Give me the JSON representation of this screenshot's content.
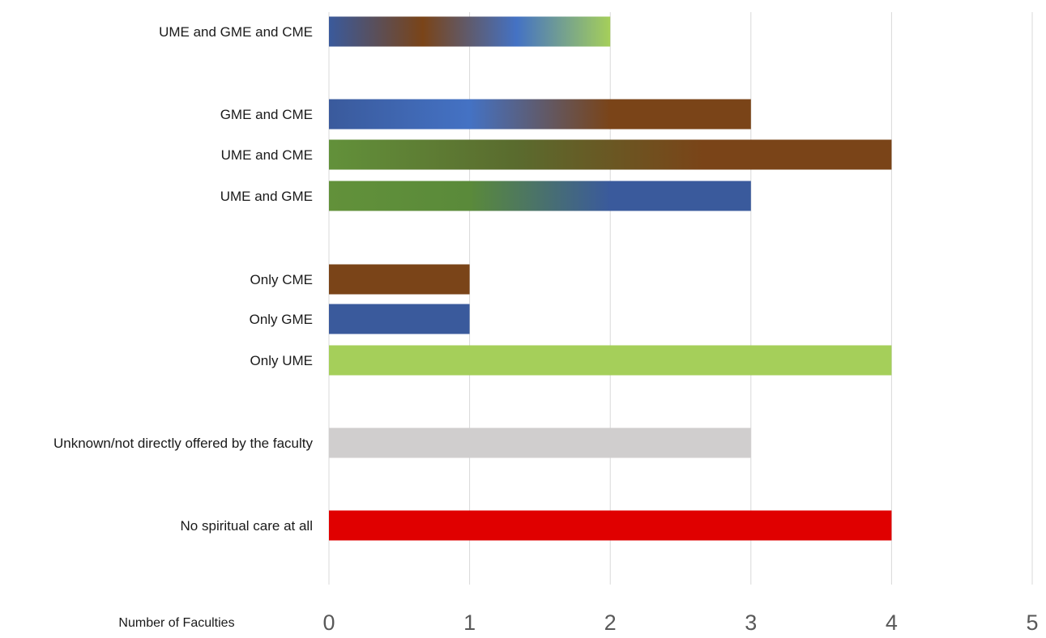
{
  "chart_data": {
    "type": "bar",
    "orientation": "horizontal",
    "categories": [
      "UME and GME and CME",
      "GME and CME",
      "UME and CME",
      "UME and GME",
      "Only CME",
      "Only GME",
      "Only UME",
      "Unknown/not directly offered by the faculty",
      "No spiritual care at all"
    ],
    "values": [
      2,
      3,
      4,
      3,
      1,
      1,
      4,
      3,
      4
    ],
    "bar_colors": [
      [
        "#3a5a9c",
        "#7a4418",
        "#4472c4",
        "#a5cf5a"
      ],
      [
        "#3a5a9c",
        "#4472c4",
        "#7a4418",
        "#7a4418"
      ],
      [
        "#62913a",
        "#5a6b2e",
        "#7a4418",
        "#7a4418"
      ],
      [
        "#62913a",
        "#5a8a3a",
        "#3a5a9c",
        "#3a5a9c"
      ],
      [
        "#7a4418"
      ],
      [
        "#3a5a9c"
      ],
      [
        "#a5cf5a"
      ],
      [
        "#d0cece"
      ],
      [
        "#e00000"
      ]
    ],
    "xlim": [
      0,
      5
    ],
    "x_ticks": [
      "0",
      "1",
      "2",
      "3",
      "4",
      "5"
    ],
    "xlabel": "Number of Faculties",
    "ylabel": "",
    "title": "",
    "grid": "vertical",
    "legend": "none"
  }
}
